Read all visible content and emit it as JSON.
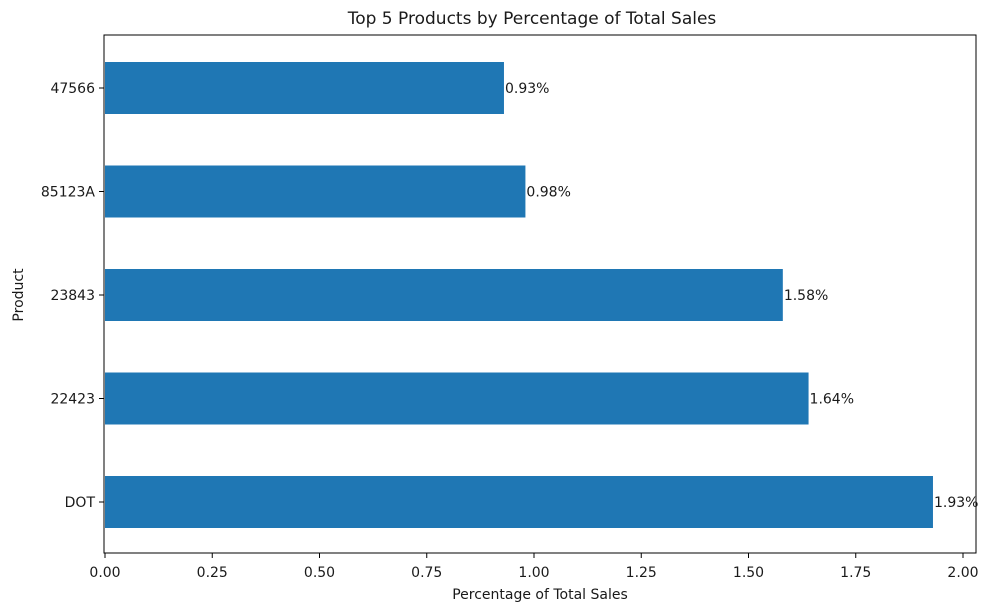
{
  "chart_data": {
    "type": "bar",
    "orientation": "horizontal",
    "title": "Top 5 Products by Percentage of Total Sales",
    "xlabel": "Percentage of Total Sales",
    "ylabel": "Product",
    "categories": [
      "DOT",
      "22423",
      "23843",
      "85123A",
      "47566"
    ],
    "values": [
      1.93,
      1.64,
      1.58,
      0.98,
      0.93
    ],
    "data_labels": [
      "1.93%",
      "1.64%",
      "1.58%",
      "0.98%",
      "0.93%"
    ],
    "xlim": [
      0,
      2.0
    ],
    "xticks": [
      0.0,
      0.25,
      0.5,
      0.75,
      1.0,
      1.25,
      1.5,
      1.75,
      2.0
    ],
    "xtick_labels": [
      "0.00",
      "0.25",
      "0.50",
      "0.75",
      "1.00",
      "1.25",
      "1.50",
      "1.75",
      "2.00"
    ],
    "grid": false,
    "legend": "none",
    "bar_color": "#1f77b4"
  }
}
